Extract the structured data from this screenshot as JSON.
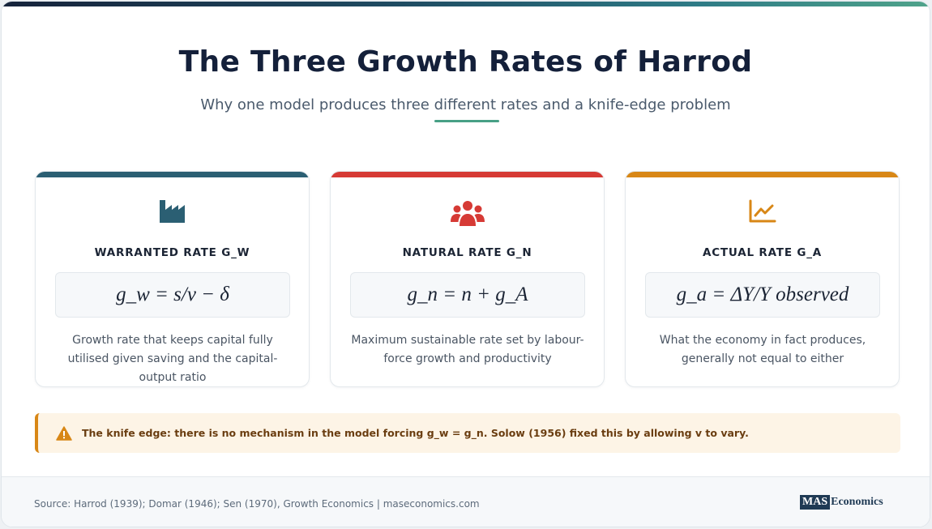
{
  "header": {
    "title": "The Three Growth Rates of Harrod",
    "subtitle": "Why one model produces three different rates and a knife-edge problem"
  },
  "cards": [
    {
      "icon": "factory-icon",
      "accent_color": "#2b5f73",
      "label": "WARRANTED RATE G_W",
      "formula": "g_w = s/v − δ",
      "description": "Growth rate that keeps capital fully utilised given saving and the capital-output ratio"
    },
    {
      "icon": "users-icon",
      "accent_color": "#d63a35",
      "label": "NATURAL RATE G_N",
      "formula": "g_n = n + g_A",
      "description": "Maximum sustainable rate set by labour-force growth and productivity"
    },
    {
      "icon": "line-chart-icon",
      "accent_color": "#d88716",
      "label": "ACTUAL RATE G_A",
      "formula": "g_a = ΔY/Y observed",
      "description": "What the economy in fact produces, generally not equal to either"
    }
  ],
  "callout": {
    "icon": "warning-icon",
    "text": "The knife edge: there is no mechanism in the model forcing g_w = g_n. Solow (1956) fixed this by allowing v to vary."
  },
  "footer": {
    "source": "Source: Harrod (1939); Domar (1946); Sen (1970), Growth Economics | maseconomics.com",
    "logo_box": "MAS",
    "logo_text": "Economics"
  }
}
